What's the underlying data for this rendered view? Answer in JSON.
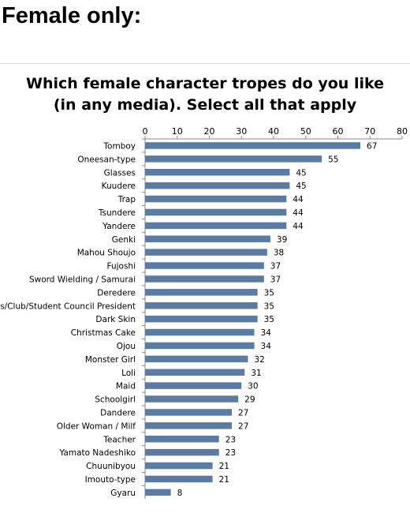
{
  "page": {
    "heading": "Female only:"
  },
  "chart_data": {
    "type": "bar",
    "orientation": "horizontal",
    "title": "Which female character tropes do you like (in any media). Select all that apply",
    "title_lines": [
      "Which female character tropes do you like",
      "(in any media). Select all that apply"
    ],
    "xlabel": "",
    "ylabel": "",
    "xlim": [
      0,
      80
    ],
    "x_ticks": [
      0,
      10,
      20,
      30,
      40,
      50,
      60,
      70,
      80
    ],
    "x_axis_position": "top",
    "grid": false,
    "bar_color": "#5b7ba3",
    "categories": [
      "Tomboy",
      "Oneesan-type",
      "Glasses",
      "Kuudere",
      "Trap",
      "Tsundere",
      "Yandere",
      "Genki",
      "Mahou Shoujo",
      "Fujoshi",
      "Sword Wielding / Samurai",
      "Deredere",
      "Class/Club/Student Council President",
      "Dark Skin",
      "Christmas Cake",
      "Ojou",
      "Monster Girl",
      "Loli",
      "Maid",
      "Schoolgirl",
      "Dandere",
      "Older Woman / Milf",
      "Teacher",
      "Yamato Nadeshiko",
      "Chuunibyou",
      "Imouto-type",
      "Gyaru"
    ],
    "values": [
      67,
      55,
      45,
      45,
      44,
      44,
      44,
      39,
      38,
      37,
      37,
      35,
      35,
      35,
      34,
      34,
      32,
      31,
      30,
      29,
      27,
      27,
      23,
      23,
      21,
      21,
      8
    ],
    "data_labels": true
  }
}
